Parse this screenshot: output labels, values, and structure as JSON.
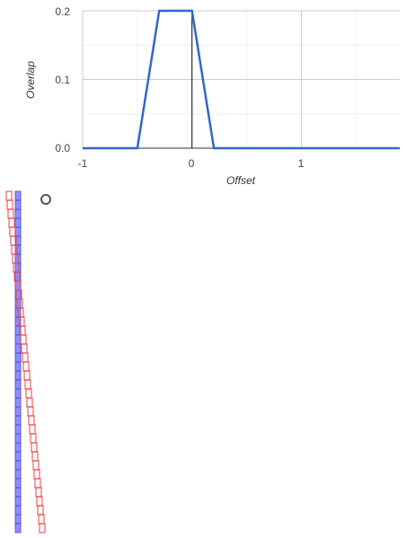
{
  "chart_data": {
    "type": "line",
    "title": "",
    "xlabel": "Offset",
    "ylabel": "Overlap",
    "xlim": [
      -1,
      1.9
    ],
    "ylim": [
      0,
      0.2
    ],
    "x_ticks": [
      "-1",
      "0",
      "1"
    ],
    "y_ticks": [
      "0.0",
      "0.1",
      "0.2"
    ],
    "grid": true,
    "series": [
      {
        "color": "#3366cc",
        "x": [
          -1,
          -0.5,
          -0.3,
          0,
          0.2,
          1.9
        ],
        "y": [
          0,
          0,
          0.2,
          0.2,
          0,
          0
        ]
      }
    ],
    "annotations": [
      {
        "type": "vertical-line",
        "x": 0,
        "color": "#000000"
      }
    ]
  },
  "strip": {
    "blue_color": "#4444ee",
    "red_color": "#ee4444",
    "blue_count": 38,
    "red_count": 38,
    "red_slope": 1
  },
  "radio": {
    "state": "unchecked"
  }
}
